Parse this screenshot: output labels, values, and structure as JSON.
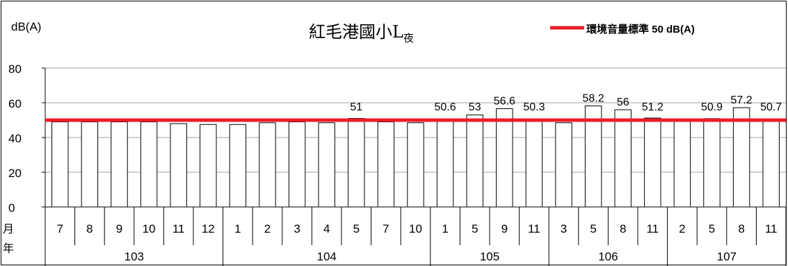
{
  "chart_data": {
    "type": "bar",
    "title": "紅毛港國小L",
    "title_subscript": "夜",
    "ylabel": "dB(A)",
    "ylim": [
      0,
      80
    ],
    "yticks": [
      0,
      20,
      40,
      60,
      80
    ],
    "grid": true,
    "legend": {
      "label": "環境音量標準 50 dB(A)",
      "position": "top-right",
      "color": "#ee1c24"
    },
    "standard_line": {
      "value": 50,
      "color": "#ee1c24"
    },
    "row_labels": {
      "month": "月",
      "year": "年"
    },
    "categories": [
      "7",
      "8",
      "9",
      "10",
      "11",
      "12",
      "1",
      "2",
      "3",
      "4",
      "5",
      "7",
      "10",
      "1",
      "5",
      "9",
      "11",
      "3",
      "5",
      "8",
      "11",
      "2",
      "5",
      "8",
      "11"
    ],
    "years": [
      {
        "label": "103",
        "count": 6
      },
      {
        "label": "104",
        "count": 7
      },
      {
        "label": "105",
        "count": 4
      },
      {
        "label": "106",
        "count": 4
      },
      {
        "label": "107",
        "count": 4
      }
    ],
    "values": [
      49,
      49,
      49,
      49,
      48,
      47.5,
      47.5,
      48.5,
      49,
      48.5,
      51,
      49,
      48.5,
      50.6,
      53,
      56.6,
      50.3,
      48.5,
      58.2,
      56,
      51.2,
      49.5,
      50.9,
      57.2,
      50.7
    ],
    "data_labels": [
      null,
      null,
      null,
      null,
      null,
      null,
      null,
      null,
      null,
      null,
      "51",
      null,
      null,
      "50.6",
      "53",
      "56.6",
      "50.3",
      null,
      "58.2",
      "56",
      "51.2",
      null,
      "50.9",
      "57.2",
      "50.7"
    ]
  }
}
